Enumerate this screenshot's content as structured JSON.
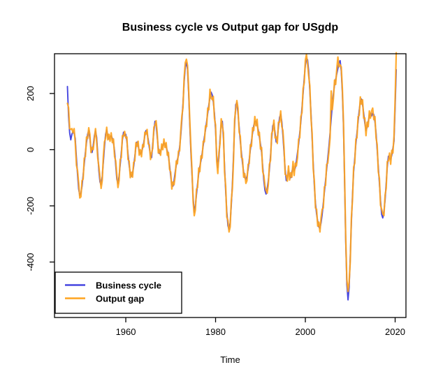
{
  "figure": {
    "title": "Business cycle vs Output gap for USgdp",
    "background": "#ffffff"
  },
  "chart_data": {
    "type": "line",
    "title": "Business cycle vs Output gap for USgdp",
    "xlabel": "Time",
    "ylabel": "",
    "grid": false,
    "x_ticks": [
      1960,
      1980,
      2000,
      2020
    ],
    "y_ticks": [
      -400,
      -200,
      0,
      200
    ],
    "xlim": [
      1944.12,
      2022.41
    ],
    "ylim": [
      -597.5,
      341.6
    ],
    "axis_color": "#000000",
    "legend": {
      "position": "bottom-left",
      "entries": [
        {
          "label": "Business cycle",
          "color": "#4646E0"
        },
        {
          "label": "Output gap",
          "color": "#FFA41E"
        }
      ]
    },
    "columns": [
      "year",
      "business_cycle",
      "output_gap"
    ],
    "points": [
      [
        1947,
        225,
        165
      ],
      [
        1947.25,
        120,
        150
      ],
      [
        1947.5,
        60,
        75
      ],
      [
        1947.75,
        35,
        72
      ],
      [
        1948,
        55,
        75
      ],
      [
        1948.25,
        65,
        60
      ],
      [
        1948.5,
        58,
        75
      ],
      [
        1948.75,
        40,
        25
      ],
      [
        1949,
        -30,
        -55
      ],
      [
        1949.25,
        -90,
        -75
      ],
      [
        1949.5,
        -140,
        -120
      ],
      [
        1949.75,
        -163,
        -172
      ],
      [
        1950,
        -155,
        -168
      ],
      [
        1950.25,
        -130,
        -110
      ],
      [
        1950.5,
        -90,
        -105
      ],
      [
        1950.75,
        -50,
        -30
      ],
      [
        1951,
        -10,
        -25
      ],
      [
        1951.25,
        25,
        45
      ],
      [
        1951.5,
        55,
        40
      ],
      [
        1951.75,
        68,
        78
      ],
      [
        1952,
        40,
        55
      ],
      [
        1952.25,
        5,
        -10
      ],
      [
        1952.5,
        -10,
        8
      ],
      [
        1952.75,
        15,
        0
      ],
      [
        1953,
        50,
        40
      ],
      [
        1953.25,
        66,
        75
      ],
      [
        1953.5,
        45,
        30
      ],
      [
        1953.75,
        -15,
        -30
      ],
      [
        1954,
        -75,
        -60
      ],
      [
        1954.25,
        -115,
        -100
      ],
      [
        1954.5,
        -125,
        -138
      ],
      [
        1954.75,
        -95,
        -110
      ],
      [
        1955,
        -45,
        -25
      ],
      [
        1955.25,
        10,
        28
      ],
      [
        1955.5,
        55,
        40
      ],
      [
        1955.75,
        70,
        80
      ],
      [
        1956,
        50,
        35
      ],
      [
        1956.25,
        38,
        55
      ],
      [
        1956.5,
        45,
        30
      ],
      [
        1956.75,
        50,
        60
      ],
      [
        1957,
        40,
        25
      ],
      [
        1957.25,
        25,
        38
      ],
      [
        1957.5,
        -5,
        -25
      ],
      [
        1957.75,
        -55,
        -40
      ],
      [
        1958,
        -105,
        -90
      ],
      [
        1958.25,
        -121,
        -135
      ],
      [
        1958.5,
        -95,
        -110
      ],
      [
        1958.75,
        -55,
        -35
      ],
      [
        1959,
        -10,
        -28
      ],
      [
        1959.25,
        35,
        50
      ],
      [
        1959.5,
        62,
        48
      ],
      [
        1959.75,
        50,
        65
      ],
      [
        1960,
        55,
        42
      ],
      [
        1960.25,
        30,
        45
      ],
      [
        1960.5,
        -15,
        -35
      ],
      [
        1960.75,
        -55,
        -40
      ],
      [
        1961,
        -85,
        -100
      ],
      [
        1961.25,
        -95,
        -80
      ],
      [
        1961.5,
        -85,
        -98
      ],
      [
        1961.75,
        -60,
        -45
      ],
      [
        1962,
        -25,
        -40
      ],
      [
        1962.25,
        10,
        25
      ],
      [
        1962.5,
        27,
        12
      ],
      [
        1962.75,
        15,
        30
      ],
      [
        1963,
        -5,
        -20
      ],
      [
        1963.25,
        -15,
        0
      ],
      [
        1963.5,
        -10,
        -25
      ],
      [
        1963.75,
        5,
        18
      ],
      [
        1964,
        25,
        10
      ],
      [
        1964.25,
        50,
        62
      ],
      [
        1964.5,
        68,
        55
      ],
      [
        1964.75,
        60,
        72
      ],
      [
        1965,
        35,
        20
      ],
      [
        1965.25,
        5,
        18
      ],
      [
        1965.5,
        -20,
        -35
      ],
      [
        1965.75,
        -28,
        -12
      ],
      [
        1966,
        20,
        5
      ],
      [
        1966.25,
        65,
        80
      ],
      [
        1966.5,
        101,
        88
      ],
      [
        1966.75,
        90,
        103
      ],
      [
        1967,
        45,
        60
      ],
      [
        1967.25,
        5,
        -12
      ],
      [
        1967.5,
        -14,
        0
      ],
      [
        1967.75,
        -5,
        -20
      ],
      [
        1968,
        5,
        20
      ],
      [
        1968.25,
        15,
        0
      ],
      [
        1968.5,
        23,
        38
      ],
      [
        1968.75,
        20,
        8
      ],
      [
        1969,
        10,
        25
      ],
      [
        1969.25,
        -5,
        -20
      ],
      [
        1969.5,
        -25,
        -10
      ],
      [
        1969.75,
        -55,
        -70
      ],
      [
        1970,
        -95,
        -80
      ],
      [
        1970.25,
        -125,
        -140
      ],
      [
        1970.5,
        -130,
        -115
      ],
      [
        1970.75,
        -110,
        -125
      ],
      [
        1971,
        -80,
        -95
      ],
      [
        1971.25,
        -55,
        -40
      ],
      [
        1971.5,
        -35,
        -50
      ],
      [
        1971.75,
        -20,
        -5
      ],
      [
        1972,
        10,
        -5
      ],
      [
        1972.25,
        50,
        65
      ],
      [
        1972.5,
        105,
        120
      ],
      [
        1972.75,
        165,
        150
      ],
      [
        1973,
        240,
        255
      ],
      [
        1973.25,
        295,
        310
      ],
      [
        1973.5,
        310,
        322
      ],
      [
        1973.75,
        285,
        300
      ],
      [
        1974,
        200,
        215
      ],
      [
        1974.25,
        90,
        105
      ],
      [
        1974.5,
        -10,
        10
      ],
      [
        1974.75,
        -90,
        -75
      ],
      [
        1975,
        -170,
        -185
      ],
      [
        1975.25,
        -222,
        -235
      ],
      [
        1975.5,
        -200,
        -215
      ],
      [
        1975.75,
        -160,
        -140
      ],
      [
        1976,
        -120,
        -135
      ],
      [
        1976.25,
        -85,
        -65
      ],
      [
        1976.5,
        -60,
        -78
      ],
      [
        1976.75,
        -40,
        -22
      ],
      [
        1977,
        -15,
        -30
      ],
      [
        1977.25,
        15,
        30
      ],
      [
        1977.5,
        45,
        28
      ],
      [
        1977.75,
        70,
        85
      ],
      [
        1978,
        100,
        82
      ],
      [
        1978.25,
        130,
        148
      ],
      [
        1978.5,
        160,
        142
      ],
      [
        1978.75,
        185,
        215
      ],
      [
        1979,
        205,
        185
      ],
      [
        1979.25,
        195,
        178
      ],
      [
        1979.5,
        170,
        190
      ],
      [
        1979.75,
        130,
        112
      ],
      [
        1980,
        70,
        88
      ],
      [
        1980.25,
        -20,
        -40
      ],
      [
        1980.5,
        -64,
        -85
      ],
      [
        1980.75,
        -30,
        -10
      ],
      [
        1981,
        40,
        22
      ],
      [
        1981.25,
        90,
        110
      ],
      [
        1981.5,
        101,
        85
      ],
      [
        1981.75,
        40,
        60
      ],
      [
        1982,
        -60,
        -80
      ],
      [
        1982.25,
        -150,
        -130
      ],
      [
        1982.5,
        -220,
        -240
      ],
      [
        1982.75,
        -270,
        -252
      ],
      [
        1983,
        -285,
        -293
      ],
      [
        1983.25,
        -260,
        -275
      ],
      [
        1983.5,
        -200,
        -182
      ],
      [
        1983.75,
        -120,
        -138
      ],
      [
        1984,
        -20,
        -38
      ],
      [
        1984.25,
        90,
        108
      ],
      [
        1984.5,
        160,
        145
      ],
      [
        1984.75,
        168,
        175
      ],
      [
        1985,
        130,
        148
      ],
      [
        1985.25,
        80,
        62
      ],
      [
        1985.5,
        30,
        48
      ],
      [
        1985.75,
        -10,
        -28
      ],
      [
        1986,
        -50,
        -32
      ],
      [
        1986.25,
        -80,
        -98
      ],
      [
        1986.5,
        -100,
        -85
      ],
      [
        1986.75,
        -106,
        -120
      ],
      [
        1987,
        -95,
        -110
      ],
      [
        1987.25,
        -70,
        -52
      ],
      [
        1987.5,
        -35,
        -50
      ],
      [
        1987.75,
        0,
        18
      ],
      [
        1988,
        30,
        12
      ],
      [
        1988.25,
        60,
        78
      ],
      [
        1988.5,
        85,
        68
      ],
      [
        1988.75,
        100,
        118
      ],
      [
        1989,
        101,
        85
      ],
      [
        1989.25,
        90,
        108
      ],
      [
        1989.5,
        70,
        52
      ],
      [
        1989.75,
        45,
        62
      ],
      [
        1990,
        20,
        2
      ],
      [
        1990.25,
        -10,
        8
      ],
      [
        1990.5,
        -60,
        -78
      ],
      [
        1990.75,
        -110,
        -92
      ],
      [
        1991,
        -145,
        -128
      ],
      [
        1991.25,
        -158,
        -145
      ],
      [
        1991.5,
        -140,
        -155
      ],
      [
        1991.75,
        -110,
        -125
      ],
      [
        1992,
        -70,
        -52
      ],
      [
        1992.25,
        -20,
        -38
      ],
      [
        1992.5,
        40,
        58
      ],
      [
        1992.75,
        85,
        68
      ],
      [
        1993,
        93,
        105
      ],
      [
        1993.25,
        60,
        42
      ],
      [
        1993.5,
        27,
        45
      ],
      [
        1993.75,
        40,
        22
      ],
      [
        1994,
        80,
        98
      ],
      [
        1994.25,
        115,
        98
      ],
      [
        1994.5,
        126,
        138
      ],
      [
        1994.75,
        100,
        82
      ],
      [
        1995,
        50,
        68
      ],
      [
        1995.25,
        -10,
        8
      ],
      [
        1995.5,
        -70,
        -88
      ],
      [
        1995.75,
        -110,
        -92
      ],
      [
        1996,
        -95,
        -112
      ],
      [
        1996.25,
        -75,
        -58
      ],
      [
        1996.5,
        -90,
        -108
      ],
      [
        1996.75,
        -100,
        -82
      ],
      [
        1997,
        -80,
        -98
      ],
      [
        1997.25,
        -60,
        -42
      ],
      [
        1997.5,
        -75,
        -92
      ],
      [
        1997.75,
        -65,
        -48
      ],
      [
        1998,
        -40,
        -58
      ],
      [
        1998.25,
        -10,
        -28
      ],
      [
        1998.5,
        20,
        38
      ],
      [
        1998.75,
        60,
        42
      ],
      [
        1999,
        100,
        118
      ],
      [
        1999.25,
        150,
        132
      ],
      [
        1999.5,
        200,
        218
      ],
      [
        1999.75,
        255,
        238
      ],
      [
        2000,
        300,
        318
      ],
      [
        2000.25,
        325,
        339
      ],
      [
        2000.5,
        320,
        305
      ],
      [
        2000.75,
        280,
        262
      ],
      [
        2001,
        210,
        228
      ],
      [
        2001.25,
        130,
        112
      ],
      [
        2001.5,
        40,
        58
      ],
      [
        2001.75,
        -50,
        -68
      ],
      [
        2002,
        -130,
        -112
      ],
      [
        2002.25,
        -190,
        -208
      ],
      [
        2002.5,
        -230,
        -212
      ],
      [
        2002.75,
        -255,
        -272
      ],
      [
        2003,
        -275,
        -258
      ],
      [
        2003.25,
        -280,
        -293
      ],
      [
        2003.5,
        -260,
        -242
      ],
      [
        2003.75,
        -230,
        -212
      ],
      [
        2004,
        -190,
        -208
      ],
      [
        2004.25,
        -150,
        -132
      ],
      [
        2004.5,
        -110,
        -128
      ],
      [
        2004.75,
        -70,
        -52
      ],
      [
        2005,
        -30,
        -48
      ],
      [
        2005.25,
        10,
        -8
      ],
      [
        2005.5,
        60,
        42
      ],
      [
        2005.75,
        110,
        209
      ],
      [
        2006,
        160,
        142
      ],
      [
        2006.25,
        200,
        182
      ],
      [
        2006.5,
        230,
        248
      ],
      [
        2006.75,
        250,
        232
      ],
      [
        2007,
        270,
        288
      ],
      [
        2007.25,
        290,
        330
      ],
      [
        2007.5,
        310,
        295
      ],
      [
        2007.75,
        317,
        302
      ],
      [
        2008,
        280,
        295
      ],
      [
        2008.25,
        200,
        218
      ],
      [
        2008.5,
        80,
        98
      ],
      [
        2008.75,
        -120,
        -102
      ],
      [
        2009,
        -330,
        -312
      ],
      [
        2009.25,
        -480,
        -462
      ],
      [
        2009.5,
        -535,
        -505
      ],
      [
        2009.75,
        -490,
        -470
      ],
      [
        2010,
        -380,
        -398
      ],
      [
        2010.25,
        -260,
        -242
      ],
      [
        2010.5,
        -160,
        -178
      ],
      [
        2010.75,
        -80,
        -62
      ],
      [
        2011,
        -31,
        -48
      ],
      [
        2011.25,
        20,
        38
      ],
      [
        2011.5,
        60,
        42
      ],
      [
        2011.75,
        100,
        118
      ],
      [
        2012,
        140,
        122
      ],
      [
        2012.25,
        170,
        188
      ],
      [
        2012.5,
        180,
        162
      ],
      [
        2012.75,
        160,
        178
      ],
      [
        2013,
        130,
        112
      ],
      [
        2013.25,
        95,
        113
      ],
      [
        2013.5,
        68,
        50
      ],
      [
        2013.75,
        80,
        98
      ],
      [
        2014,
        100,
        82
      ],
      [
        2014.25,
        120,
        138
      ],
      [
        2014.5,
        130,
        112
      ],
      [
        2014.75,
        120,
        138
      ],
      [
        2015,
        130,
        148
      ],
      [
        2015.25,
        125,
        107
      ],
      [
        2015.5,
        100,
        118
      ],
      [
        2015.75,
        60,
        42
      ],
      [
        2016,
        0,
        18
      ],
      [
        2016.25,
        -60,
        -78
      ],
      [
        2016.5,
        -120,
        -102
      ],
      [
        2016.75,
        -180,
        -198
      ],
      [
        2017,
        -230,
        -212
      ],
      [
        2017.25,
        -243,
        -228
      ],
      [
        2017.5,
        -220,
        -235
      ],
      [
        2017.75,
        -180,
        -162
      ],
      [
        2018,
        -120,
        -138
      ],
      [
        2018.25,
        -60,
        -42
      ],
      [
        2018.5,
        -23,
        -40
      ],
      [
        2018.75,
        -30,
        -12
      ],
      [
        2019,
        -35,
        -52
      ],
      [
        2019.25,
        -20,
        -2
      ],
      [
        2019.5,
        5,
        -12
      ],
      [
        2019.75,
        30,
        48
      ],
      [
        2020,
        150,
        180
      ],
      [
        2020.25,
        285,
        345
      ]
    ]
  }
}
